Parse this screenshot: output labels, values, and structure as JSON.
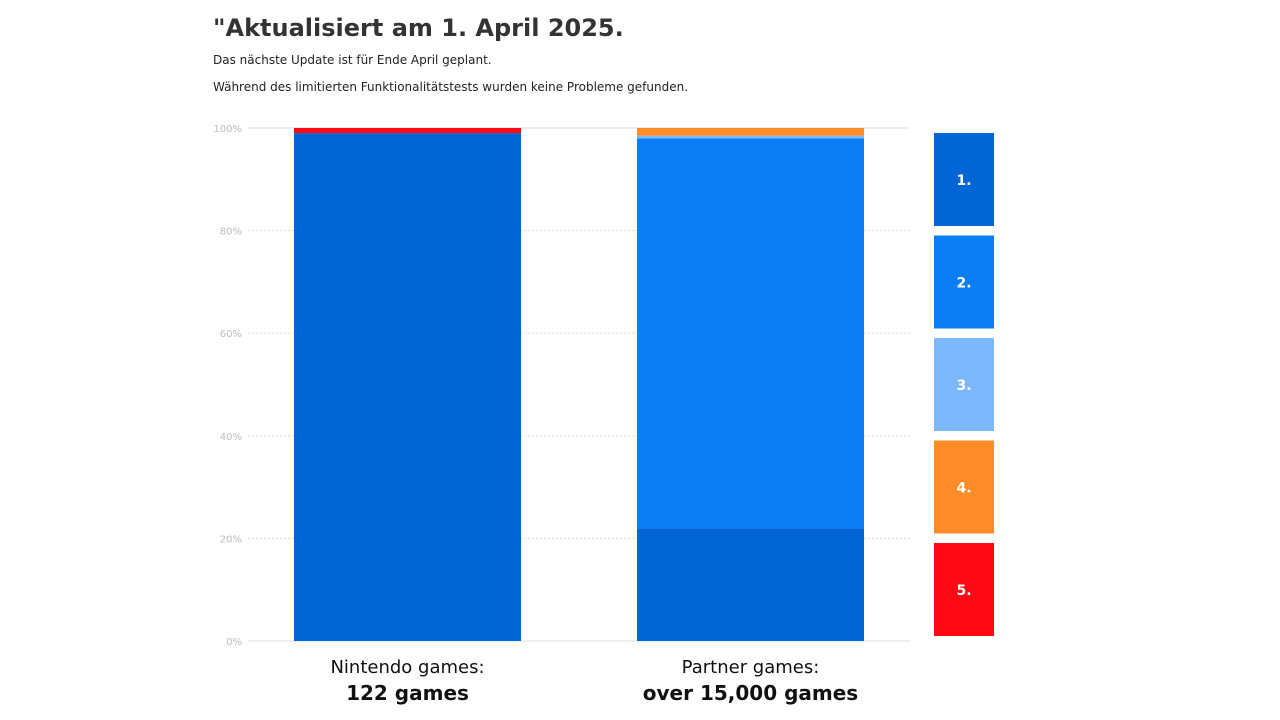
{
  "header": {
    "title": "\"Aktualisiert am 1. April 2025.",
    "line1": "Das nächste Update ist für Ende April geplant.",
    "line2": "Während des limitierten Funktionalitätstests wurden keine Probleme gefunden."
  },
  "chart_data": {
    "type": "bar",
    "stacked": true,
    "categories": [
      "Nintendo games:",
      "Partner games:"
    ],
    "category_sublabels": [
      "122 games",
      "over 15,000 games"
    ],
    "ylim": [
      0,
      100
    ],
    "yticks": [
      "0%",
      "20%",
      "40%",
      "60%",
      "80%",
      "100%"
    ],
    "grid": true,
    "legend_placement": "right",
    "series": [
      {
        "name": "1.",
        "color": "#0066d6",
        "values": [
          99,
          22
        ]
      },
      {
        "name": "2.",
        "color": "#0a7ff5",
        "values": [
          0,
          76
        ]
      },
      {
        "name": "3.",
        "color": "#7db8ff",
        "values": [
          0,
          0.5
        ]
      },
      {
        "name": "4.",
        "color": "#ff8c28",
        "values": [
          0,
          1.5
        ]
      },
      {
        "name": "5.",
        "color": "#ff0a14",
        "values": [
          1,
          0
        ]
      }
    ]
  }
}
